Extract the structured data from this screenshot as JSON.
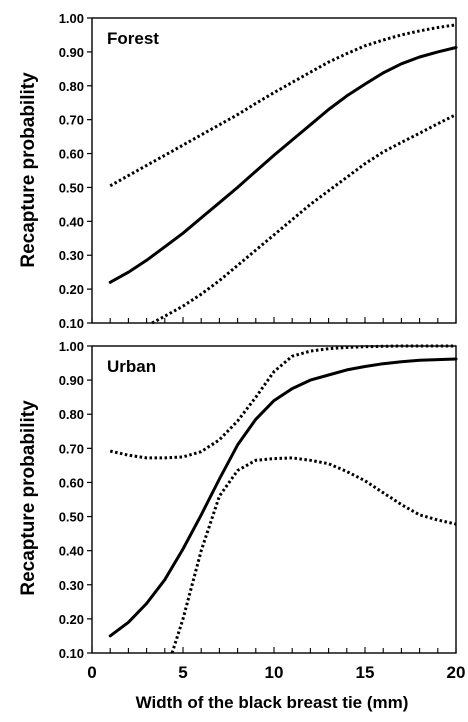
{
  "chart_data": [
    {
      "type": "line",
      "panel_label": "Forest",
      "ylabel": "Recapture probability",
      "ylim": [
        0.1,
        1.0
      ],
      "y_ticks": [
        "0.10",
        "0.20",
        "0.30",
        "0.40",
        "0.50",
        "0.60",
        "0.70",
        "0.80",
        "0.90",
        "1.00"
      ],
      "xlim": [
        0,
        20
      ],
      "series": [
        {
          "style": "solid",
          "x": [
            1,
            2,
            3,
            4,
            5,
            6,
            7,
            8,
            9,
            10,
            11,
            12,
            13,
            14,
            15,
            16,
            17,
            18,
            19,
            20
          ],
          "y": [
            0.22,
            0.25,
            0.285,
            0.325,
            0.365,
            0.41,
            0.455,
            0.5,
            0.548,
            0.595,
            0.64,
            0.685,
            0.73,
            0.77,
            0.805,
            0.838,
            0.865,
            0.885,
            0.9,
            0.913
          ]
        },
        {
          "style": "dotted",
          "x": [
            1,
            2,
            3,
            4,
            5,
            6,
            7,
            8,
            9,
            10,
            11,
            12,
            13,
            14,
            15,
            16,
            17,
            18,
            19,
            20
          ],
          "y": [
            0.505,
            0.535,
            0.565,
            0.595,
            0.625,
            0.655,
            0.685,
            0.715,
            0.748,
            0.78,
            0.81,
            0.84,
            0.87,
            0.895,
            0.918,
            0.935,
            0.95,
            0.962,
            0.972,
            0.98
          ]
        },
        {
          "style": "dotted",
          "x": [
            3.3,
            4,
            5,
            6,
            7,
            8,
            9,
            10,
            11,
            12,
            13,
            14,
            15,
            16,
            17,
            18,
            19,
            20
          ],
          "y": [
            0.1,
            0.12,
            0.15,
            0.185,
            0.225,
            0.27,
            0.315,
            0.36,
            0.405,
            0.45,
            0.49,
            0.53,
            0.57,
            0.605,
            0.633,
            0.66,
            0.688,
            0.715
          ]
        }
      ]
    },
    {
      "type": "line",
      "panel_label": "Urban",
      "ylabel": "Recapture probability",
      "xlabel": "Width of the black breast tie (mm)",
      "ylim": [
        0.1,
        1.0
      ],
      "y_ticks": [
        "0.10",
        "0.20",
        "0.30",
        "0.40",
        "0.50",
        "0.60",
        "0.70",
        "0.80",
        "0.90",
        "1.00"
      ],
      "xlim": [
        0,
        20
      ],
      "x_ticks": [
        "0",
        "5",
        "10",
        "15",
        "20"
      ],
      "series": [
        {
          "style": "solid",
          "x": [
            1,
            2,
            3,
            4,
            5,
            6,
            7,
            8,
            9,
            10,
            11,
            12,
            13,
            14,
            15,
            16,
            17,
            18,
            19,
            20
          ],
          "y": [
            0.15,
            0.19,
            0.245,
            0.315,
            0.405,
            0.505,
            0.61,
            0.71,
            0.785,
            0.84,
            0.875,
            0.9,
            0.915,
            0.93,
            0.94,
            0.948,
            0.954,
            0.958,
            0.96,
            0.962
          ]
        },
        {
          "style": "dotted",
          "x": [
            1,
            2,
            3,
            4,
            5,
            6,
            7,
            8,
            9,
            10,
            11,
            12,
            13,
            14,
            15,
            16,
            17,
            18,
            19,
            20
          ],
          "y": [
            0.692,
            0.68,
            0.672,
            0.672,
            0.675,
            0.69,
            0.725,
            0.78,
            0.85,
            0.925,
            0.97,
            0.985,
            0.992,
            0.996,
            0.998,
            0.999,
            1.0,
            1.0,
            1.0,
            1.0
          ]
        },
        {
          "style": "dotted",
          "x": [
            4.4,
            5,
            6,
            7,
            8,
            9,
            10,
            11,
            12,
            13,
            14,
            15,
            16,
            17,
            18,
            19,
            20
          ],
          "y": [
            0.1,
            0.2,
            0.4,
            0.56,
            0.635,
            0.665,
            0.67,
            0.672,
            0.665,
            0.655,
            0.632,
            0.605,
            0.57,
            0.535,
            0.505,
            0.49,
            0.478
          ]
        }
      ]
    }
  ]
}
